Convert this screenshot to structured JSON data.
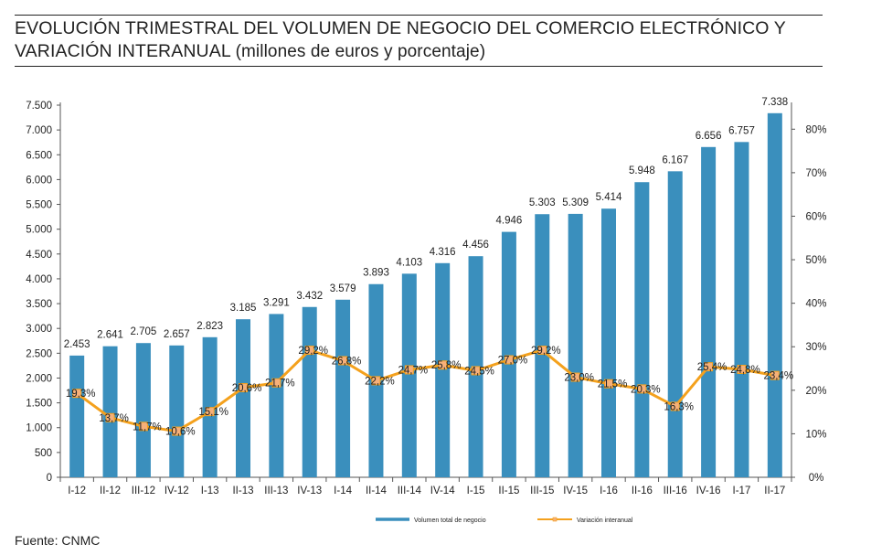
{
  "title": {
    "main": "EVOLUCIÓN TRIMESTRAL DEL VOLUMEN DE NEGOCIO DEL COMERCIO ELECTRÓNICO Y VARIACIÓN INTERANUAL",
    "units": "(millones de euros y porcentaje)"
  },
  "source": "Fuente: CNMC",
  "colors": {
    "bar": "#3a8fbd",
    "line": "#f4a11d",
    "marker": "#f6b07a"
  },
  "chart_data": {
    "type": "bar",
    "categories": [
      "I-12",
      "II-12",
      "III-12",
      "IV-12",
      "I-13",
      "II-13",
      "III-13",
      "IV-13",
      "I-14",
      "II-14",
      "III-14",
      "IV-14",
      "I-15",
      "II-15",
      "III-15",
      "IV-15",
      "I-16",
      "II-16",
      "III-16",
      "IV-16",
      "I-17",
      "II-17"
    ],
    "series": [
      {
        "name": "Volumen total de negocio",
        "type": "bar",
        "axis": "left",
        "values": [
          2453,
          2641,
          2705,
          2657,
          2823,
          3185,
          3291,
          3432,
          3579,
          3893,
          4103,
          4316,
          4456,
          4946,
          5303,
          5309,
          5414,
          5948,
          6167,
          6656,
          6757,
          7338
        ],
        "labels": [
          "2.453",
          "2.641",
          "2.705",
          "2.657",
          "2.823",
          "3.185",
          "3.291",
          "3.432",
          "3.579",
          "3.893",
          "4.103",
          "4.316",
          "4.456",
          "4.946",
          "5.303",
          "5.309",
          "5.414",
          "5.948",
          "6.167",
          "6.656",
          "6.757",
          "7.338"
        ]
      },
      {
        "name": "Variación interanual",
        "type": "line",
        "axis": "right",
        "values": [
          19.3,
          13.7,
          11.7,
          10.6,
          15.1,
          20.6,
          21.7,
          29.2,
          26.8,
          22.2,
          24.7,
          25.8,
          24.5,
          27.0,
          29.2,
          23.0,
          21.5,
          20.3,
          16.3,
          25.4,
          24.8,
          23.4
        ],
        "labels": [
          "19,3%",
          "13,7%",
          "11,7%",
          "10,6%",
          "15,1%",
          "20,6%",
          "21,7%",
          "29,2%",
          "26,8%",
          "22,2%",
          "24,7%",
          "25,8%",
          "24,5%",
          "27,0%",
          "29,2%",
          "23,0%",
          "21,5%",
          "20,3%",
          "16,3%",
          "25,4%",
          "24,8%",
          "23,4%"
        ]
      }
    ],
    "y_left": {
      "range": [
        0,
        7500
      ],
      "ticks": [
        0,
        500,
        1000,
        1500,
        2000,
        2500,
        3000,
        3500,
        4000,
        4500,
        5000,
        5500,
        6000,
        6500,
        7000,
        7500
      ],
      "tick_labels": [
        "0",
        "500",
        "1.000",
        "1.500",
        "2.000",
        "2.500",
        "3.000",
        "3.500",
        "4.000",
        "4.500",
        "5.000",
        "5.500",
        "6.000",
        "6.500",
        "7.000",
        "7.500"
      ]
    },
    "y_right": {
      "range": [
        0,
        85
      ],
      "ticks": [
        0,
        10,
        20,
        30,
        40,
        50,
        60,
        70,
        80
      ],
      "tick_labels": [
        "0%",
        "10%",
        "20%",
        "30%",
        "40%",
        "50%",
        "60%",
        "70%",
        "80%"
      ]
    },
    "grid": false,
    "legend_position": "bottom"
  }
}
